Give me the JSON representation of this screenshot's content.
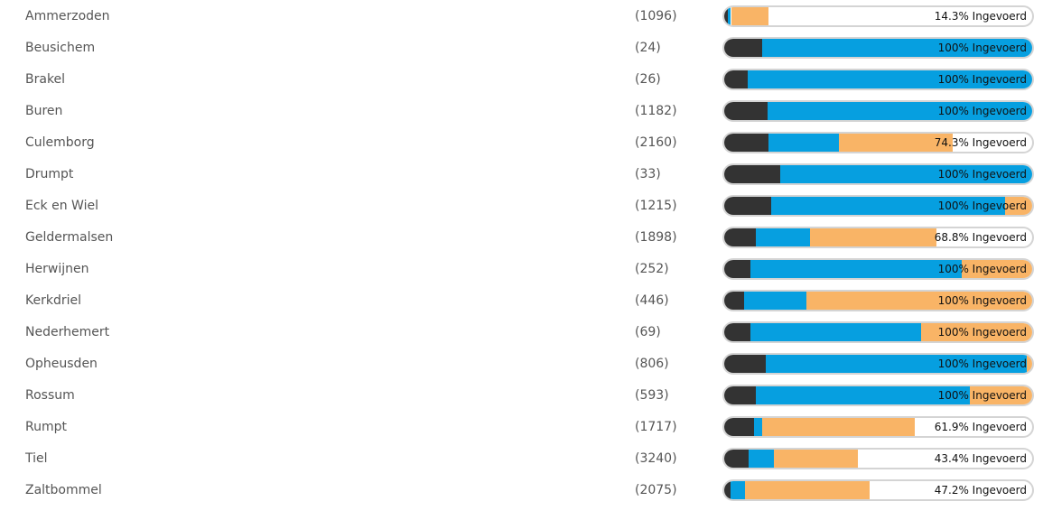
{
  "segment_colors": [
    "#333333",
    "#069fe0",
    "#f9b466"
  ],
  "rows": [
    {
      "name": "Ammerzoden",
      "count": "(1096)",
      "segments": [
        1.2,
        1.0,
        12.1
      ],
      "label": "14.3% Ingevoerd"
    },
    {
      "name": "Beusichem",
      "count": "(24)",
      "segments": [
        12.3,
        87.7,
        0
      ],
      "label": "100% Ingevoerd"
    },
    {
      "name": "Brakel",
      "count": "(26)",
      "segments": [
        7.6,
        92.4,
        0
      ],
      "label": "100% Ingevoerd"
    },
    {
      "name": "Buren",
      "count": "(1182)",
      "segments": [
        14.1,
        85.9,
        0
      ],
      "label": "100% Ingevoerd"
    },
    {
      "name": "Culemborg",
      "count": "(2160)",
      "segments": [
        14.4,
        22.9,
        37.0
      ],
      "label": "74.3% Ingevoerd"
    },
    {
      "name": "Drumpt",
      "count": "(33)",
      "segments": [
        18.2,
        81.8,
        0
      ],
      "label": "100% Ingevoerd"
    },
    {
      "name": "Eck en Wiel",
      "count": "(1215)",
      "segments": [
        15.2,
        76.0,
        8.8
      ],
      "label": "100% Ingevoerd"
    },
    {
      "name": "Geldermalsen",
      "count": "(1898)",
      "segments": [
        10.3,
        17.6,
        40.9
      ],
      "label": "68.8% Ingevoerd"
    },
    {
      "name": "Herwijnen",
      "count": "(252)",
      "segments": [
        8.5,
        68.6,
        22.9
      ],
      "label": "100% Ingevoerd"
    },
    {
      "name": "Kerkdriel",
      "count": "(446)",
      "segments": [
        6.5,
        20.2,
        73.3
      ],
      "label": "100% Ingevoerd"
    },
    {
      "name": "Nederhemert",
      "count": "(69)",
      "segments": [
        8.5,
        55.4,
        36.1
      ],
      "label": "100% Ingevoerd"
    },
    {
      "name": "Opheusden",
      "count": "(806)",
      "segments": [
        13.5,
        84.8,
        1.7
      ],
      "label": "100% Ingevoerd"
    },
    {
      "name": "Rossum",
      "count": "(593)",
      "segments": [
        10.3,
        69.5,
        20.2
      ],
      "label": "100% Ingevoerd"
    },
    {
      "name": "Rumpt",
      "count": "(1717)",
      "segments": [
        9.7,
        2.6,
        49.6
      ],
      "label": "61.9% Ingevoerd"
    },
    {
      "name": "Tiel",
      "count": "(3240)",
      "segments": [
        7.9,
        8.2,
        27.3
      ],
      "label": "43.4% Ingevoerd"
    },
    {
      "name": "Zaltbommel",
      "count": "(2075)",
      "segments": [
        2.1,
        4.7,
        40.4
      ],
      "label": "47.2% Ingevoerd"
    }
  ]
}
